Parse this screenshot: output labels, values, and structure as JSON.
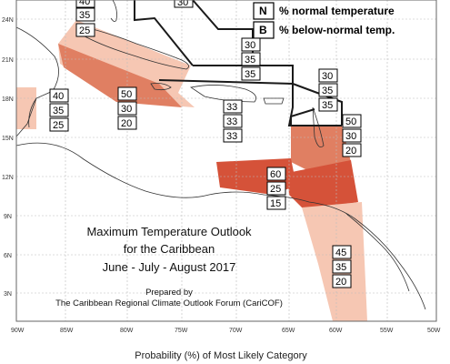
{
  "map": {
    "title_lines": [
      "Maximum Temperature Outlook",
      "for the Caribbean",
      "June - July - August 2017"
    ],
    "credit_lines": [
      "Prepared by",
      "The Caribbean Regional Climate Outlook Forum (CariCOF)"
    ],
    "caption": "Probability (%) of Most Likely Category",
    "lat_ticks": [
      "24N",
      "21N",
      "18N",
      "15N",
      "12N",
      "9N",
      "6N",
      "3N"
    ],
    "lon_ticks": [
      "90W",
      "85W",
      "80W",
      "75W",
      "70W",
      "65W",
      "60W",
      "55W",
      "50W"
    ],
    "legend": [
      {
        "letter": "N",
        "text": "% normal temperature"
      },
      {
        "letter": "B",
        "text": "% below-normal temp."
      }
    ],
    "colors": {
      "light": "#f6c7b3",
      "medium": "#e07f62",
      "dark": "#d55239",
      "zone_outline": "#1a1a1a",
      "land": "#ffffff",
      "grid": "#bbbbbb"
    },
    "forecast_boxes": [
      {
        "id": "top-partial-left",
        "values": [
          "40",
          "35",
          "25"
        ]
      },
      {
        "id": "top-partial-right",
        "values": [
          "30"
        ]
      },
      {
        "id": "bahamas",
        "values": [
          "30",
          "35",
          "35"
        ]
      },
      {
        "id": "belize",
        "values": [
          "40",
          "35",
          "25"
        ]
      },
      {
        "id": "cayman-jamaica",
        "values": [
          "50",
          "30",
          "20"
        ]
      },
      {
        "id": "hispaniola",
        "values": [
          "33",
          "33",
          "33"
        ]
      },
      {
        "id": "leeward-islands",
        "values": [
          "30",
          "35",
          "35"
        ]
      },
      {
        "id": "windward-islands",
        "values": [
          "50",
          "30",
          "20"
        ]
      },
      {
        "id": "abc-islands",
        "values": [
          "60",
          "25",
          "15"
        ]
      },
      {
        "id": "guianas",
        "values": [
          "45",
          "35",
          "20"
        ]
      }
    ]
  }
}
